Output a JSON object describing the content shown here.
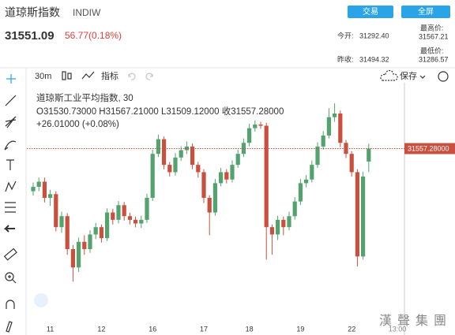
{
  "header": {
    "name": "道琼斯指数",
    "code": "INDIW",
    "price": "31551.09",
    "change": "56.77(0.18%)",
    "trade_button": "交易",
    "fullscreen_button": "全屏",
    "open_label": "今开:",
    "open_value": "31292.40",
    "prev_close_label": "昨收:",
    "prev_close_value": "31494.32",
    "high_label": "最高价:",
    "high_value": "31567.21",
    "low_label": "最低价:",
    "low_value": "31286.57"
  },
  "toolbar": {
    "interval": "30m",
    "indicators": "指标",
    "save": "保存"
  },
  "watermark": "漢聲集團",
  "chart_data": {
    "type": "candlestick",
    "legend_title": "道琼斯工业平均指数, 30",
    "legend_ohlc": "O31530.73000  H31567.21000  L31509.12000  收31557.28000",
    "legend_change": "+26.01000 (+0.08%)",
    "last_price_label": "31557.28000",
    "time_cursor_label": "13:00",
    "up_color": "#53a36f",
    "down_color": "#c9503f",
    "ylim": [
      31200,
      31700
    ],
    "categories": [
      null,
      null,
      null,
      "11",
      null,
      null,
      null,
      null,
      null,
      null,
      null,
      null,
      "12",
      null,
      null,
      null,
      null,
      null,
      null,
      null,
      null,
      "16",
      null,
      null,
      null,
      null,
      null,
      null,
      null,
      null,
      "17",
      null,
      null,
      null,
      null,
      null,
      null,
      null,
      "18",
      null,
      null,
      null,
      null,
      null,
      null,
      null,
      null,
      "19",
      null,
      null,
      null,
      null,
      null,
      null,
      null,
      null,
      "22",
      null,
      null,
      null
    ],
    "ohlc": [
      [
        31470,
        31488,
        31461,
        31479
      ],
      [
        31479,
        31498,
        31470,
        31489.5
      ],
      [
        31489.5,
        31498,
        31447,
        31456.5
      ],
      [
        31456.5,
        31473,
        31440,
        31464
      ],
      [
        31464,
        31470,
        31388,
        31396.5
      ],
      [
        31396.5,
        31428,
        31385,
        31419
      ],
      [
        31419,
        31425,
        31340,
        31351.5
      ],
      [
        31351.5,
        31360,
        31285,
        31314
      ],
      [
        31314,
        31375,
        31305,
        31366.5
      ],
      [
        31366.5,
        31380,
        31340,
        31351.5
      ],
      [
        31351.5,
        31390,
        31344,
        31381.5
      ],
      [
        31381.5,
        31405,
        31372,
        31396.5
      ],
      [
        31396.5,
        31402,
        31365,
        31374
      ],
      [
        31374,
        31435,
        31368,
        31426.5
      ],
      [
        31426.5,
        31434,
        31402,
        31411.5
      ],
      [
        31411.5,
        31450,
        31404,
        31441.5
      ],
      [
        31441.5,
        31448,
        31410,
        31419
      ],
      [
        31419,
        31426,
        31402,
        31411.5
      ],
      [
        31411.5,
        31418,
        31396,
        31404
      ],
      [
        31404,
        31420,
        31395,
        31411.5
      ],
      [
        31411.5,
        31465,
        31405,
        31456.5
      ],
      [
        31456.5,
        31555,
        31450,
        31546.5
      ],
      [
        31546.5,
        31586,
        31540,
        31576.5
      ],
      [
        31576.5,
        31582,
        31515,
        31524
      ],
      [
        31524,
        31530,
        31500,
        31509
      ],
      [
        31509,
        31548,
        31502,
        31539
      ],
      [
        31539,
        31562,
        31532,
        31554
      ],
      [
        31554,
        31572,
        31546,
        31561.5
      ],
      [
        31561.5,
        31568,
        31515,
        31524
      ],
      [
        31524,
        31530,
        31498,
        31509
      ],
      [
        31509,
        31515,
        31446,
        31456.5
      ],
      [
        31456.5,
        31462,
        31380,
        31426.5
      ],
      [
        31426.5,
        31495,
        31420,
        31486.5
      ],
      [
        31486.5,
        31518,
        31480,
        31509
      ],
      [
        31509,
        31515,
        31486,
        31494
      ],
      [
        31494,
        31533,
        31488,
        31524
      ],
      [
        31524,
        31555,
        31518,
        31546.5
      ],
      [
        31546.5,
        31578,
        31540,
        31569
      ],
      [
        31569,
        31608,
        31562,
        31599
      ],
      [
        31599,
        31615,
        31592,
        31606.5
      ],
      [
        31606.5,
        31612,
        31598,
        31604
      ],
      [
        31604,
        31610,
        31330,
        31396.5
      ],
      [
        31396.5,
        31402,
        31340,
        31381.5
      ],
      [
        31381.5,
        31420,
        31370,
        31411.5
      ],
      [
        31411.5,
        31418,
        31380,
        31396.5
      ],
      [
        31396.5,
        31428,
        31390,
        31419
      ],
      [
        31419,
        31458,
        31412,
        31449
      ],
      [
        31449,
        31495,
        31442,
        31486.5
      ],
      [
        31486.5,
        31503,
        31478,
        31494
      ],
      [
        31494,
        31533,
        31488,
        31524
      ],
      [
        31524,
        31570,
        31518,
        31561.5
      ],
      [
        31561.5,
        31593,
        31555,
        31584
      ],
      [
        31584,
        31640,
        31578,
        31621.5
      ],
      [
        31621.5,
        31650,
        31612,
        31629
      ],
      [
        31629,
        31635,
        31560,
        31569
      ],
      [
        31569,
        31575,
        31538,
        31546.5
      ],
      [
        31546.5,
        31552,
        31500,
        31509
      ],
      [
        31509,
        31515,
        31316,
        31336.5
      ],
      [
        31336.5,
        31510,
        31330,
        31500
      ],
      [
        31530.73,
        31567.21,
        31509.12,
        31557.28
      ]
    ]
  }
}
